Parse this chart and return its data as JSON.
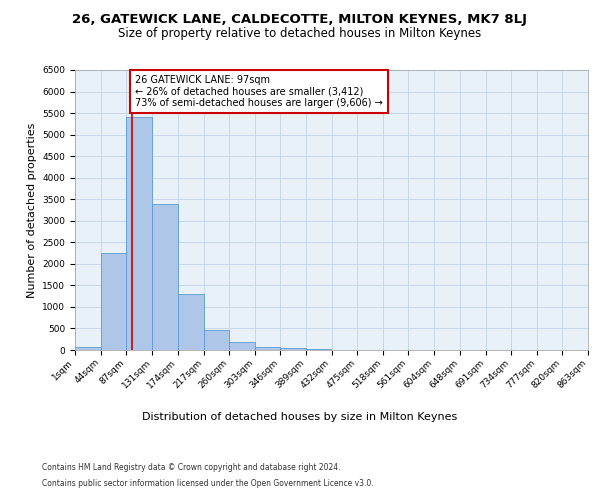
{
  "title1": "26, GATEWICK LANE, CALDECOTTE, MILTON KEYNES, MK7 8LJ",
  "title2": "Size of property relative to detached houses in Milton Keynes",
  "xlabel": "Distribution of detached houses by size in Milton Keynes",
  "ylabel": "Number of detached properties",
  "footer1": "Contains HM Land Registry data © Crown copyright and database right 2024.",
  "footer2": "Contains public sector information licensed under the Open Government Licence v3.0.",
  "bin_edges": [
    1,
    44,
    87,
    131,
    174,
    217,
    260,
    303,
    346,
    389,
    432,
    475,
    518,
    561,
    604,
    648,
    691,
    734,
    777,
    820,
    863
  ],
  "bin_counts": [
    75,
    2250,
    5400,
    3400,
    1300,
    470,
    175,
    75,
    50,
    20,
    10,
    5,
    3,
    2,
    1,
    1,
    0,
    0,
    0,
    0
  ],
  "bar_color": "#aec6e8",
  "bar_edgecolor": "#5b9bd5",
  "red_line_x": 97,
  "annotation_text": "26 GATEWICK LANE: 97sqm\n← 26% of detached houses are smaller (3,412)\n73% of semi-detached houses are larger (9,606) →",
  "annotation_box_color": "#ffffff",
  "annotation_box_edgecolor": "#cc0000",
  "ylim": [
    0,
    6500
  ],
  "yticks": [
    0,
    500,
    1000,
    1500,
    2000,
    2500,
    3000,
    3500,
    4000,
    4500,
    5000,
    5500,
    6000,
    6500
  ],
  "grid_color": "#c0d4e8",
  "background_color": "#e8f0f8",
  "title1_fontsize": 9.5,
  "title2_fontsize": 8.5,
  "xlabel_fontsize": 8,
  "ylabel_fontsize": 8,
  "tick_fontsize": 6.5,
  "annotation_fontsize": 7,
  "footer_fontsize": 5.5
}
